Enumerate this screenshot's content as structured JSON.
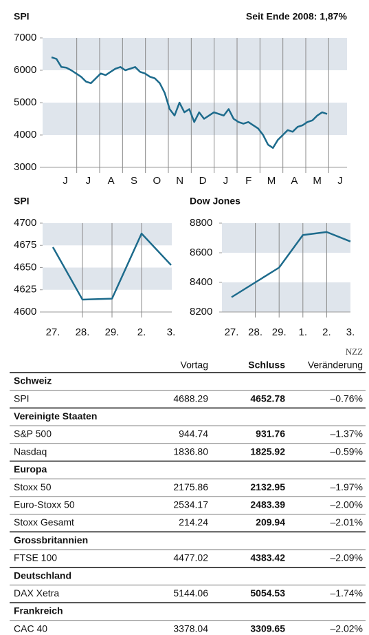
{
  "chart_data": [
    {
      "type": "line",
      "title": "SPI",
      "subtitle": "Seit Ende 2008: 1,87%",
      "xtick_labels": [
        "J",
        "J",
        "A",
        "S",
        "O",
        "N",
        "D",
        "J",
        "F",
        "M",
        "A",
        "M",
        "J"
      ],
      "values": [
        6400,
        6350,
        6100,
        6080,
        6000,
        5900,
        5800,
        5650,
        5600,
        5750,
        5900,
        5850,
        5950,
        6050,
        6100,
        6000,
        6050,
        6100,
        5950,
        5900,
        5800,
        5750,
        5600,
        5300,
        4800,
        4600,
        5000,
        4700,
        4800,
        4400,
        4700,
        4500,
        4600,
        4700,
        4650,
        4600,
        4800,
        4500,
        4400,
        4350,
        4400,
        4300,
        4200,
        4000,
        3700,
        3600,
        3850,
        4000,
        4150,
        4100,
        4250,
        4300,
        4400,
        4450,
        4600,
        4700,
        4650
      ],
      "color": "#1d6b8c",
      "ylim": [
        3000,
        7000
      ],
      "yticks": [
        3000,
        4000,
        5000,
        6000,
        7000
      ],
      "bands": true
    },
    {
      "type": "line",
      "title": "SPI",
      "categories": [
        "27.",
        "28.",
        "29.",
        "2.",
        "3."
      ],
      "values": [
        4673,
        4614,
        4615,
        4688.29,
        4652.78
      ],
      "color": "#1d6b8c",
      "ylim": [
        4600,
        4700
      ],
      "yticks": [
        4600,
        4625,
        4650,
        4675,
        4700
      ],
      "bands": true
    },
    {
      "type": "line",
      "title": "Dow Jones",
      "categories": [
        "27.",
        "28.",
        "29.",
        "1.",
        "2.",
        "3."
      ],
      "values": [
        8300,
        8400,
        8500,
        8720,
        8740,
        8676
      ],
      "color": "#1d6b8c",
      "ylim": [
        8200,
        8800
      ],
      "yticks": [
        8200,
        8400,
        8600,
        8800
      ],
      "bands": true
    }
  ],
  "table": {
    "source": "NZZ",
    "columns": [
      "Vortag",
      "Schluss",
      "Veränderung"
    ],
    "sections": [
      {
        "name": "Schweiz",
        "rows": [
          [
            "SPI",
            "4688.29",
            "4652.78",
            "–0.76%"
          ]
        ]
      },
      {
        "name": "Vereinigte Staaten",
        "rows": [
          [
            "S&P 500",
            "944.74",
            "931.76",
            "–1.37%"
          ],
          [
            "Nasdaq",
            "1836.80",
            "1825.92",
            "–0.59%"
          ]
        ]
      },
      {
        "name": "Europa",
        "rows": [
          [
            "Stoxx 50",
            "2175.86",
            "2132.95",
            "–1.97%"
          ],
          [
            "Euro-Stoxx 50",
            "2534.17",
            "2483.39",
            "–2.00%"
          ],
          [
            "Stoxx Gesamt",
            "214.24",
            "209.94",
            "–2.01%"
          ]
        ]
      },
      {
        "name": "Grossbritannien",
        "rows": [
          [
            "FTSE 100",
            "4477.02",
            "4383.42",
            "–2.09%"
          ]
        ]
      },
      {
        "name": "Deutschland",
        "rows": [
          [
            "DAX Xetra",
            "5144.06",
            "5054.53",
            "–1.74%"
          ]
        ]
      },
      {
        "name": "Frankreich",
        "rows": [
          [
            "CAC 40",
            "3378.04",
            "3309.65",
            "–2.02%"
          ]
        ]
      }
    ]
  }
}
